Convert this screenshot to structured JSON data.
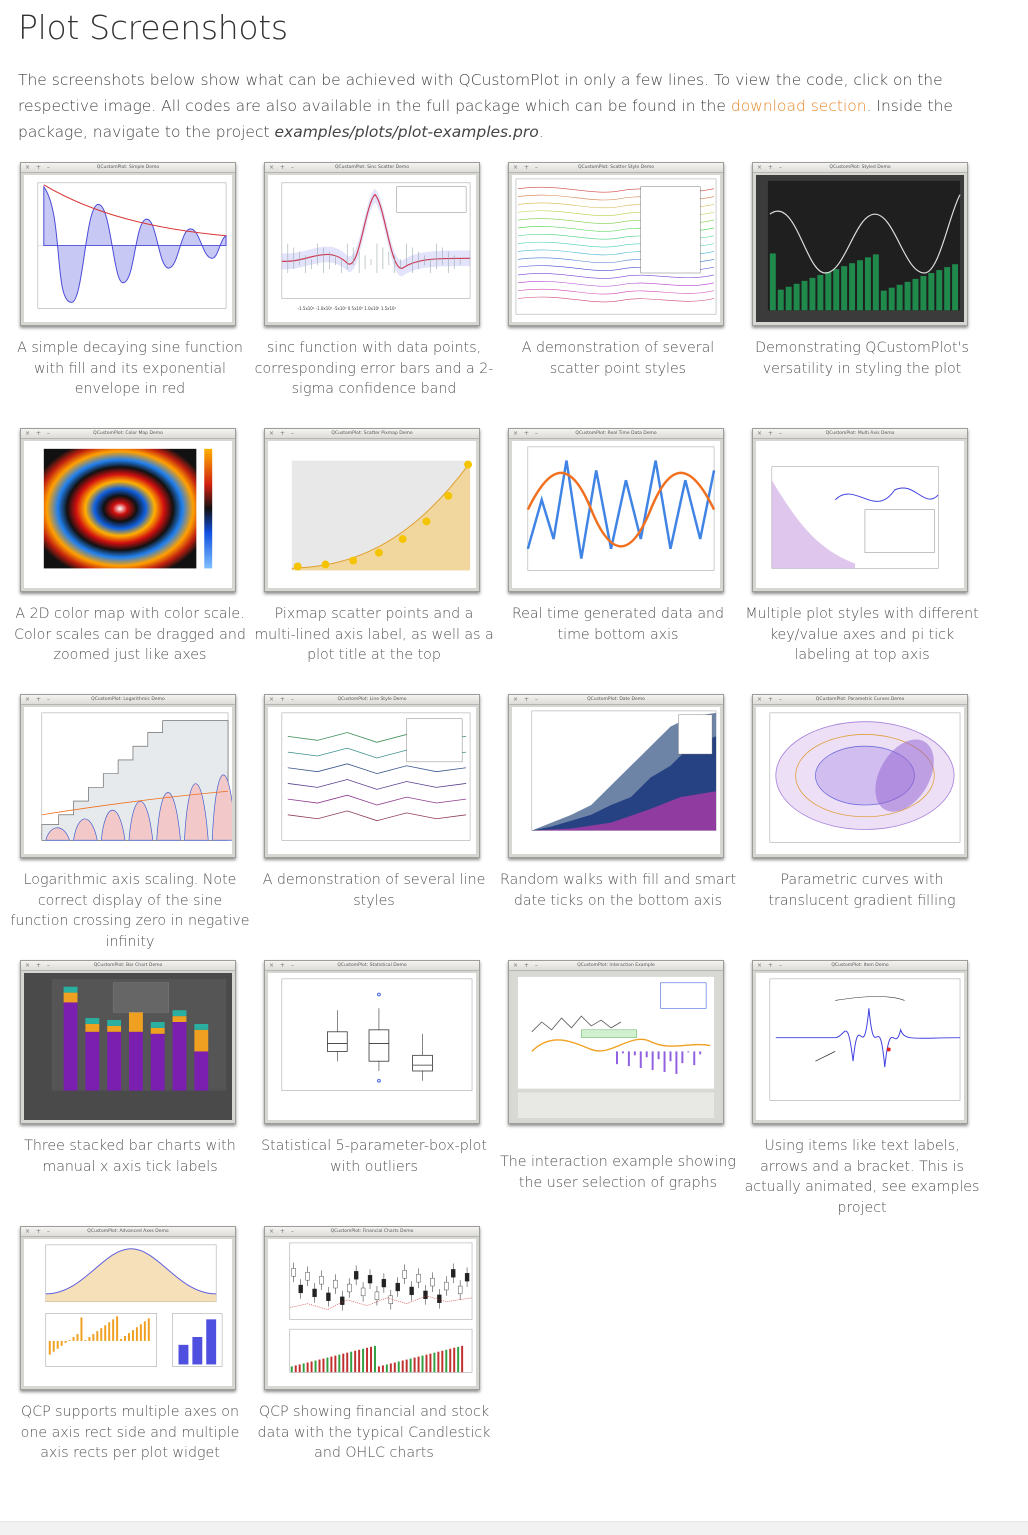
{
  "page": {
    "title": "Plot Screenshots",
    "intro_before": "The screenshots below show what can be achieved with QCustomPlot in only a few lines. To view the code, click on the respective image. All codes are also available in the full package which can be found in the",
    "intro_link": "download section",
    "intro_after": ". Inside the package, navigate to the project",
    "intro_path": "examples/plots/plot-examples.pro",
    "intro_end": "."
  },
  "window_buttons": "×  +  –",
  "colors": {
    "link": "#e8892c",
    "text": "#444444"
  },
  "examples": [
    {
      "window_title": "QCustomPlot: Simple Demo",
      "caption": "A simple decaying sine function with fill and its exponential envelope in red"
    },
    {
      "window_title": "QCustomPlot: Sinc Scatter Demo",
      "caption": "sinc function with data points, corresponding error bars and a 2-sigma confidence band"
    },
    {
      "window_title": "QCustomPlot: Scatter Style Demo",
      "caption": "A demonstration of several scatter point styles"
    },
    {
      "window_title": "QCustomPlot: Styled Demo",
      "caption": "Demonstrating QCustomPlot's versatility in styling the plot"
    },
    {
      "window_title": "QCustomPlot: Color Map Demo",
      "caption": "A 2D color map with color scale. Color scales can be dragged and zoomed just like axes"
    },
    {
      "window_title": "QCustomPlot: Scatter Pixmap Demo",
      "caption": "Pixmap scatter points and a multi-lined axis label, as well as a plot title at the top"
    },
    {
      "window_title": "QCustomPlot: Real Time Data Demo",
      "caption": "Real time generated data and time bottom axis"
    },
    {
      "window_title": "QCustomPlot: Multi Axis Demo",
      "caption": "Multiple plot styles with different key/value axes and pi tick labeling at top axis"
    },
    {
      "window_title": "QCustomPlot: Logarithmic Demo",
      "caption": "Logarithmic axis scaling. Note correct display of the sine function crossing zero in negative infinity"
    },
    {
      "window_title": "QCustomPlot: Line Style Demo",
      "caption": "A demonstration of several line styles"
    },
    {
      "window_title": "QCustomPlot: Date Demo",
      "caption": "Random walks with fill and smart date ticks on the bottom axis"
    },
    {
      "window_title": "QCustomPlot: Parametric Curves Demo",
      "caption": "Parametric curves with translucent gradient filling"
    },
    {
      "window_title": "QCustomPlot: Bar Chart Demo",
      "caption": "Three stacked bar charts with manual x axis tick labels"
    },
    {
      "window_title": "QCustomPlot: Statistical Demo",
      "caption": "Statistical 5-parameter-box-plot with outliers"
    },
    {
      "window_title": "QCustomPlot: Interaction Example",
      "caption": "The interaction example showing the user selection of graphs"
    },
    {
      "window_title": "QCustomPlot: Item Demo",
      "caption": "Using items like text labels, arrows and a bracket. This is actually animated, see examples project"
    },
    {
      "window_title": "QCustomPlot: Advanced Axes Demo",
      "caption": "QCP supports multiple axes on one axis rect side and multiple axis rects per plot widget"
    },
    {
      "window_title": "QCustomPlot: Financial Charts Demo",
      "caption": "QCP showing financial and stock data with the typical Candlestick and OHLC charts"
    }
  ]
}
